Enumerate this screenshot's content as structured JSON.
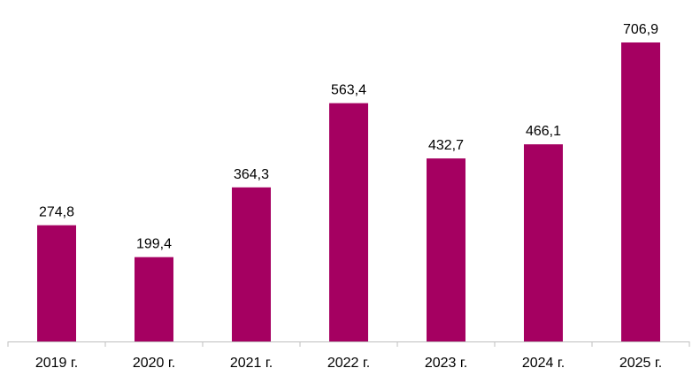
{
  "chart_data": {
    "type": "bar",
    "categories": [
      "2019 г.",
      "2020 г.",
      "2021 г.",
      "2022 г.",
      "2023 г.",
      "2024 г.",
      "2025 г."
    ],
    "values": [
      274.8,
      199.4,
      364.3,
      563.4,
      432.7,
      466.1,
      706.9
    ],
    "value_labels": [
      "274,8",
      "199,4",
      "364,3",
      "563,4",
      "432,7",
      "466,1",
      "706,9"
    ],
    "title": "",
    "xlabel": "",
    "ylabel": "",
    "ylim": [
      0,
      706.9
    ],
    "grid": false,
    "legend": "none",
    "bar_color": "#A50061",
    "axis_color": "#BFBFBF"
  }
}
